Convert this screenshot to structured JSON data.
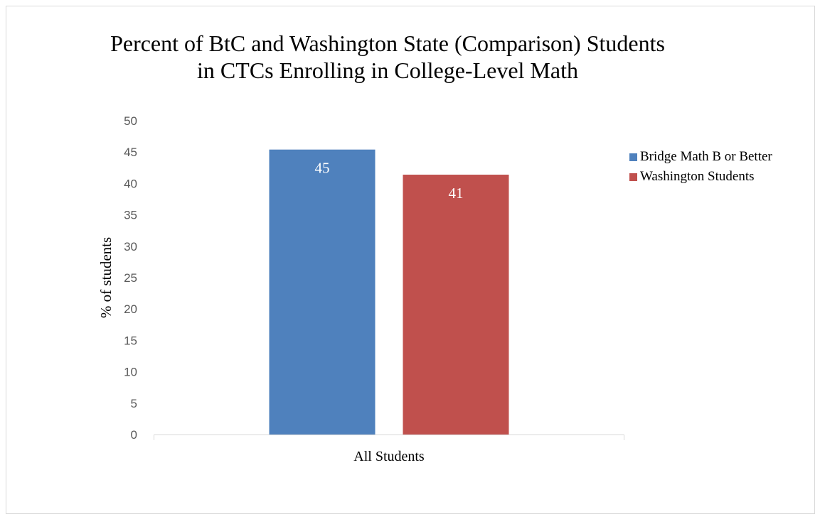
{
  "chart_data": {
    "type": "bar",
    "title": "Percent of BtC and Washington State (Comparison) Students in CTCs Enrolling in College-Level Math",
    "xlabel": "",
    "ylabel": "% of students",
    "categories": [
      "All Students"
    ],
    "ylim": [
      0,
      50
    ],
    "yticks": [
      0,
      5,
      10,
      15,
      20,
      25,
      30,
      35,
      40,
      45,
      50
    ],
    "grid": false,
    "legend_position": "right",
    "series": [
      {
        "name": "Bridge Math B or Better",
        "values": [
          45.4
        ],
        "data_labels": [
          "45"
        ],
        "color": "#4f81bd"
      },
      {
        "name": "Washington Students",
        "values": [
          41.4
        ],
        "data_labels": [
          "41"
        ],
        "color": "#c0504d"
      }
    ]
  }
}
